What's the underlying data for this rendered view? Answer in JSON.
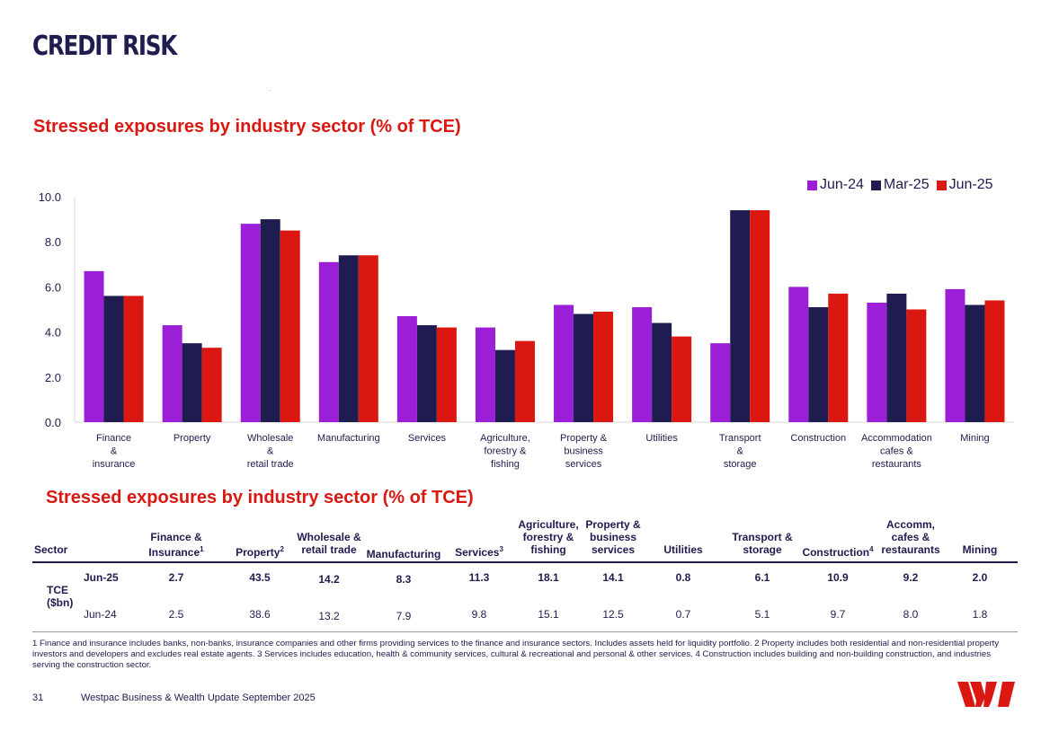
{
  "page": {
    "title": "CREDIT RISK",
    "chart_heading": "Stressed exposures by industry sector (% of TCE)",
    "table_heading": "Stressed exposures by industry sector (% of TCE)",
    "page_number": "31",
    "footer": "Westpac Business & Wealth Update September 2025",
    "footnote": "1 Finance and insurance includes banks, non-banks, insurance companies and other firms providing services to the finance and insurance sectors. Includes assets held for liquidity portfolio. 2 Property includes both residential and non-residential property investors and developers and excludes real estate agents. 3 Services includes education, health & community services, cultural & recreational and personal & other services. 4 Construction includes building and non-building construction, and industries serving the construction sector."
  },
  "colors": {
    "jun24": "#9a1fd6",
    "mar25": "#1f1c4f",
    "jun25": "#da1710",
    "grid": "#d9d9d9",
    "axis_text": "#1f1c4f"
  },
  "chart_data": {
    "type": "bar",
    "title": "Stressed exposures by industry sector (% of TCE)",
    "categories": [
      [
        "Finance",
        "&",
        "insurance"
      ],
      [
        "Property"
      ],
      [
        "Wholesale",
        "&",
        "retail trade"
      ],
      [
        "Manufacturing"
      ],
      [
        "Services"
      ],
      [
        "Agriculture,",
        "forestry &",
        "fishing"
      ],
      [
        "Property &",
        "business",
        "services"
      ],
      [
        "Utilities"
      ],
      [
        "Transport",
        "&",
        "storage"
      ],
      [
        "Construction"
      ],
      [
        "Accommodation",
        "cafes &",
        "restaurants"
      ],
      [
        "Mining"
      ]
    ],
    "series": [
      {
        "name": "Jun-24",
        "values": [
          6.7,
          4.3,
          8.8,
          7.1,
          4.7,
          4.2,
          5.2,
          5.1,
          3.5,
          6.0,
          5.3,
          5.9
        ]
      },
      {
        "name": "Mar-25",
        "values": [
          5.6,
          3.5,
          9.0,
          7.4,
          4.3,
          3.2,
          4.8,
          4.4,
          9.4,
          5.1,
          5.7,
          5.2
        ]
      },
      {
        "name": "Jun-25",
        "values": [
          5.6,
          3.3,
          8.5,
          7.4,
          4.2,
          3.6,
          4.9,
          3.8,
          9.4,
          5.7,
          5.0,
          5.4
        ]
      }
    ],
    "yticks": [
      "0.0",
      "2.0",
      "4.0",
      "6.0",
      "8.0",
      "10.0"
    ],
    "ylim": [
      0,
      10
    ],
    "legend": "top-right"
  },
  "table": {
    "headers": [
      {
        "lines": [
          "Sector"
        ],
        "sup": ""
      },
      {
        "lines": [
          "Finance &",
          "Insurance"
        ],
        "sup": "1"
      },
      {
        "lines": [
          "Property"
        ],
        "sup": "2"
      },
      {
        "lines": [
          "Wholesale &",
          "retail trade"
        ],
        "sup": ""
      },
      {
        "lines": [
          "Manufacturing"
        ],
        "sup": ""
      },
      {
        "lines": [
          "Services"
        ],
        "sup": "3"
      },
      {
        "lines": [
          "Agriculture,",
          "forestry &",
          "fishing"
        ],
        "sup": ""
      },
      {
        "lines": [
          "Property &",
          "business",
          "services"
        ],
        "sup": ""
      },
      {
        "lines": [
          "Utilities"
        ],
        "sup": ""
      },
      {
        "lines": [
          "Transport &",
          "storage"
        ],
        "sup": ""
      },
      {
        "lines": [
          "Construction"
        ],
        "sup": "4"
      },
      {
        "lines": [
          "Accomm,",
          "cafes &",
          "restaurants"
        ],
        "sup": ""
      },
      {
        "lines": [
          "Mining"
        ],
        "sup": ""
      }
    ],
    "row_group_label": [
      "TCE",
      "($bn)"
    ],
    "rows": [
      {
        "label": "Jun-25",
        "bold": true,
        "values": [
          "2.7",
          "43.5",
          "14.2",
          "8.3",
          "11.3",
          "18.1",
          "14.1",
          "0.8",
          "6.1",
          "10.9",
          "9.2",
          "2.0"
        ]
      },
      {
        "label": "Jun-24",
        "bold": false,
        "values": [
          "2.5",
          "38.6",
          "13.2",
          "7.9",
          "9.8",
          "15.1",
          "12.5",
          "0.7",
          "5.1",
          "9.7",
          "8.0",
          "1.8"
        ]
      }
    ]
  }
}
